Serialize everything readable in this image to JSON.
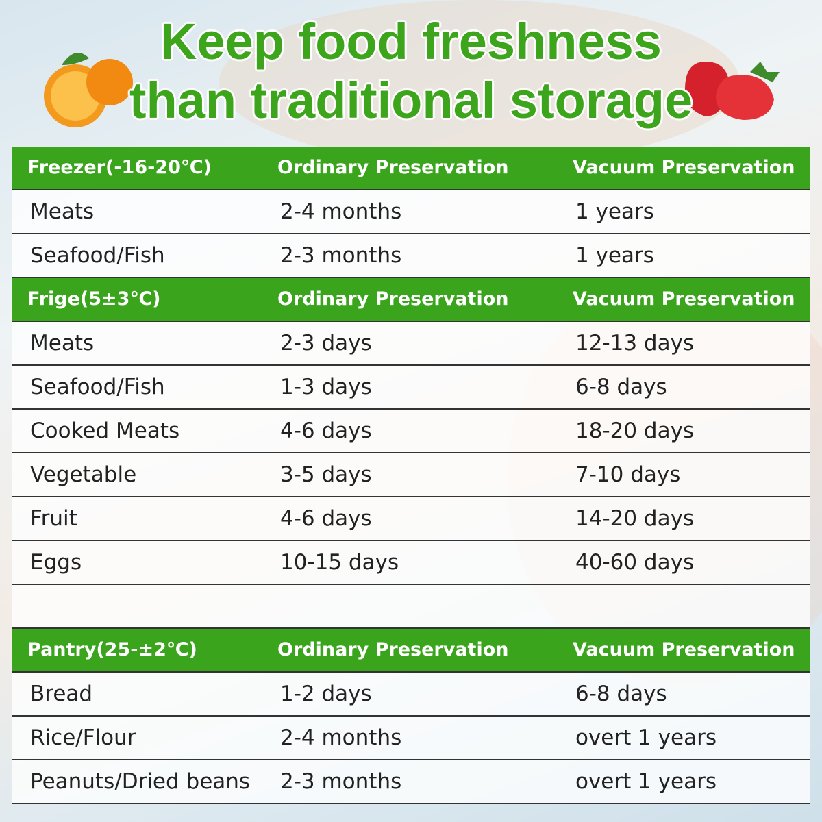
{
  "header": {
    "title": [
      "Keep food freshness",
      "than traditional storage"
    ]
  },
  "sections": [
    {
      "header": [
        "Freezer(-16-20℃)",
        "Ordinary Preservation",
        "Vacuum Preservation"
      ],
      "rows": [
        [
          "Meats",
          "2-4 months",
          "1 years"
        ],
        [
          "Seafood/Fish",
          "2-3 months",
          "1 years"
        ]
      ]
    },
    {
      "header": [
        "Frige(5±3℃)",
        "Ordinary Preservation",
        "Vacuum Preservation"
      ],
      "rows": [
        [
          "Meats",
          "2-3 days",
          "12-13 days"
        ],
        [
          "Seafood/Fish",
          "1-3 days",
          "6-8 days"
        ],
        [
          "Cooked Meats",
          "4-6 days",
          "18-20 days"
        ],
        [
          "Vegetable",
          "3-5 days",
          "7-10 days"
        ],
        [
          "Fruit",
          "4-6 days",
          "14-20 days"
        ],
        [
          "Eggs",
          "10-15 days",
          "40-60 days"
        ]
      ]
    },
    {
      "header": [
        "Pantry(25-±2℃)",
        "Ordinary Preservation",
        "Vacuum Preservation"
      ],
      "rows": [
        [
          "Bread",
          "1-2 days",
          "6-8 days"
        ],
        [
          "Rice/Flour",
          "2-4 months",
          "overt 1 years"
        ],
        [
          "Peanuts/Dried beans",
          "2-3 months",
          "overt 1 years"
        ]
      ]
    }
  ]
}
